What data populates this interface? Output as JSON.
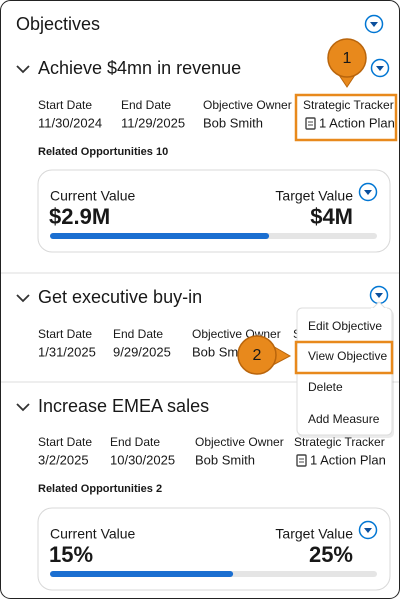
{
  "header": {
    "title": "Objectives"
  },
  "objectives": [
    {
      "title": "Achieve $4mn in revenue",
      "fields": [
        {
          "label": "Start Date",
          "value": "11/30/2024"
        },
        {
          "label": "End Date",
          "value": "11/29/2025"
        },
        {
          "label": "Objective Owner",
          "value": "Bob Smith"
        },
        {
          "label": "Strategic Tracker",
          "value": "1 Action Plan"
        }
      ],
      "related": "Related Opportunities 10",
      "card": {
        "current_label": "Current Value",
        "current_value": "$2.9M",
        "target_label": "Target Value",
        "target_value": "$4M",
        "progress": 67
      }
    },
    {
      "title": "Get executive buy-in",
      "fields": [
        {
          "label": "Start Date",
          "value": "1/31/2025"
        },
        {
          "label": "End Date",
          "value": "9/29/2025"
        },
        {
          "label": "Objective Owner",
          "value": "Bob Smith"
        },
        {
          "label": "Strategic Tracker"
        }
      ]
    },
    {
      "title": "Increase EMEA sales",
      "fields": [
        {
          "label": "Start Date",
          "value": "3/2/2025"
        },
        {
          "label": "End Date",
          "value": "10/30/2025"
        },
        {
          "label": "Objective Owner",
          "value": "Bob Smith"
        },
        {
          "label": "Strategic Tracker",
          "value": "1 Action Plan"
        }
      ],
      "related": "Related Opportunities 2",
      "card": {
        "current_label": "Current Value",
        "current_value": "15%",
        "target_label": "Target Value",
        "target_value": "25%",
        "progress": 56
      }
    }
  ],
  "menu": {
    "items": [
      "Edit Objective",
      "View Objective",
      "Delete",
      "Add Measure"
    ]
  },
  "callouts": [
    "1",
    "2"
  ]
}
